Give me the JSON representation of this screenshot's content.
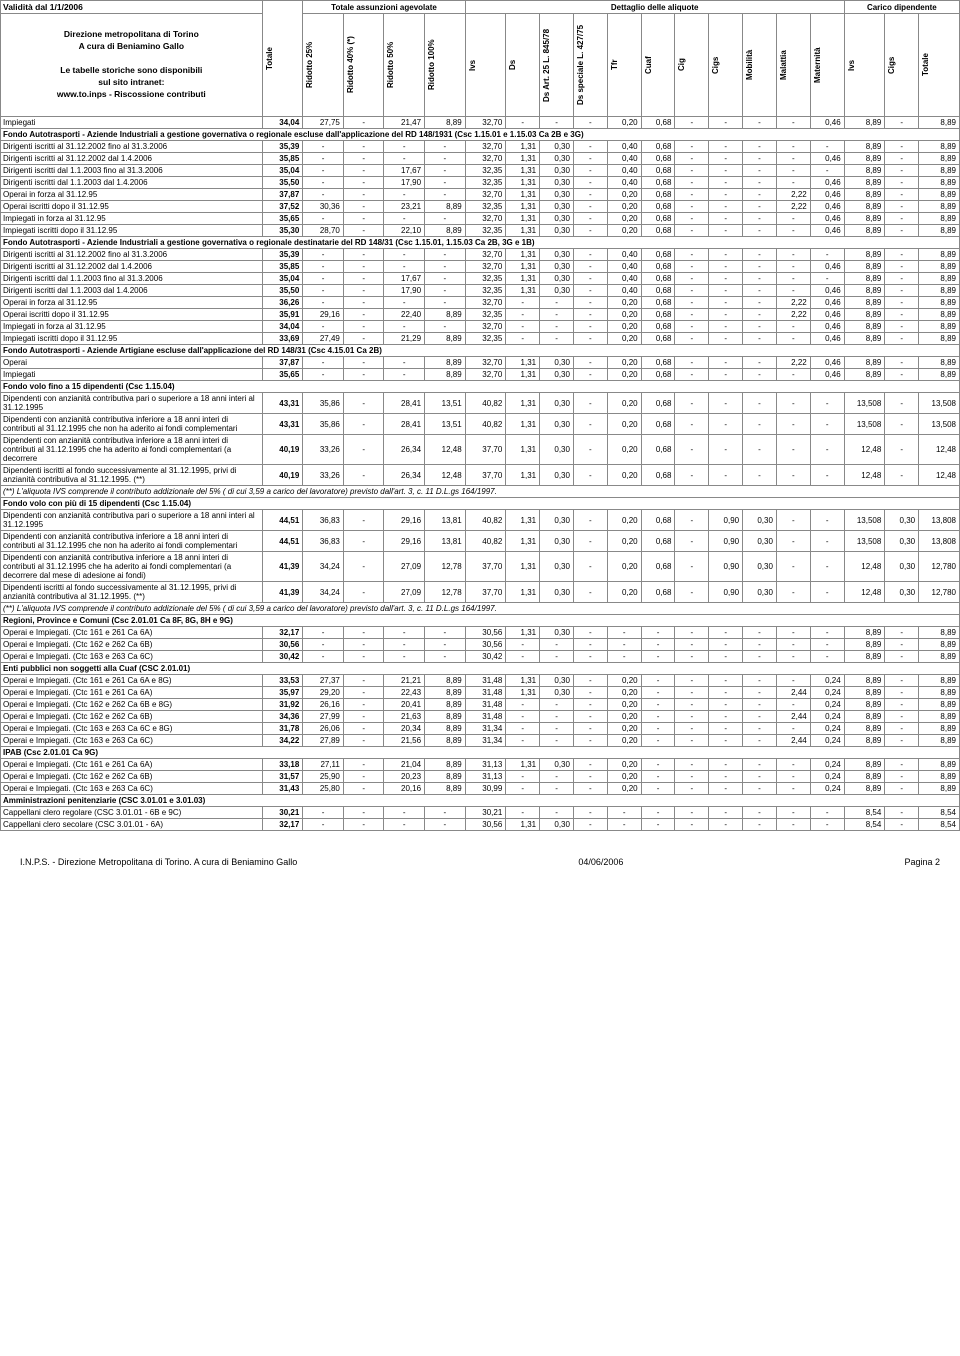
{
  "meta": {
    "validity": "Validità dal 1/1/2006",
    "dir1": "Direzione metropolitana di Torino",
    "dir2": "A cura di Beniamino Gallo",
    "dir3": "Le tabelle storiche sono disponibili",
    "dir4": "sul sito intranet:",
    "dir5": "www.to.inps - Riscossione contributi",
    "grp1": "Totale assunzioni agevolate",
    "grp2": "Dettaglio delle aliquote",
    "grp3": "Carico dipendente"
  },
  "cols": [
    "Totale",
    "Ridotto 25%",
    "Ridotto 40% (*)",
    "Ridotto 50%",
    "Ridotto 100%",
    "Ivs",
    "Ds",
    "Ds Art. 25 L. 845/78",
    "Ds speciale L. 427/75",
    "Tfr",
    "Cuaf",
    "Cig",
    "Cigs",
    "Mobilità",
    "Malattia",
    "Maternità",
    "Ivs",
    "Cigs",
    "Totale"
  ],
  "rows": [
    {
      "t": "d",
      "l": "Impiegati",
      "v": [
        "34,04",
        "27,75",
        "-",
        "21,47",
        "8,89",
        "32,70",
        "-",
        "-",
        "-",
        "0,20",
        "0,68",
        "-",
        "-",
        "-",
        "-",
        "0,46",
        "8,89",
        "-",
        "8,89"
      ]
    },
    {
      "t": "s",
      "l": "Fondo Autotrasporti - Aziende Industriali a gestione governativa o regionale escluse dall'applicazione del RD 148/1931 (Csc 1.15.01 e 1.15.03 Ca 2B e 3G)"
    },
    {
      "t": "d",
      "l": "Dirigenti iscritti al 31.12.2002 fino al 31.3.2006",
      "v": [
        "35,39",
        "-",
        "-",
        "-",
        "-",
        "32,70",
        "1,31",
        "0,30",
        "-",
        "0,40",
        "0,68",
        "-",
        "-",
        "-",
        "-",
        "-",
        "8,89",
        "-",
        "8,89"
      ]
    },
    {
      "t": "d",
      "l": "Dirigenti iscritti al 31.12.2002 dal 1.4.2006",
      "v": [
        "35,85",
        "-",
        "-",
        "-",
        "-",
        "32,70",
        "1,31",
        "0,30",
        "-",
        "0,40",
        "0,68",
        "-",
        "-",
        "-",
        "-",
        "0,46",
        "8,89",
        "-",
        "8,89"
      ]
    },
    {
      "t": "d",
      "l": "Dirigenti iscritti dal 1.1.2003 fino al 31.3.2006",
      "v": [
        "35,04",
        "-",
        "-",
        "17,67",
        "-",
        "32,35",
        "1,31",
        "0,30",
        "-",
        "0,40",
        "0,68",
        "-",
        "-",
        "-",
        "-",
        "-",
        "8,89",
        "-",
        "8,89"
      ]
    },
    {
      "t": "d",
      "l": "Dirigenti iscritti dal 1.1.2003 dal 1.4.2006",
      "v": [
        "35,50",
        "-",
        "-",
        "17,90",
        "-",
        "32,35",
        "1,31",
        "0,30",
        "-",
        "0,40",
        "0,68",
        "-",
        "-",
        "-",
        "-",
        "0,46",
        "8,89",
        "-",
        "8,89"
      ]
    },
    {
      "t": "d",
      "l": "Operai in forza al 31.12.95",
      "v": [
        "37,87",
        "-",
        "-",
        "-",
        "-",
        "32,70",
        "1,31",
        "0,30",
        "-",
        "0,20",
        "0,68",
        "-",
        "-",
        "-",
        "2,22",
        "0,46",
        "8,89",
        "-",
        "8,89"
      ]
    },
    {
      "t": "d",
      "l": "Operai iscritti dopo il 31.12.95",
      "v": [
        "37,52",
        "30,36",
        "-",
        "23,21",
        "8,89",
        "32,35",
        "1,31",
        "0,30",
        "-",
        "0,20",
        "0,68",
        "-",
        "-",
        "-",
        "2,22",
        "0,46",
        "8,89",
        "-",
        "8,89"
      ]
    },
    {
      "t": "d",
      "l": "Impiegati in forza al 31.12.95",
      "v": [
        "35,65",
        "-",
        "-",
        "-",
        "-",
        "32,70",
        "1,31",
        "0,30",
        "-",
        "0,20",
        "0,68",
        "-",
        "-",
        "-",
        "-",
        "0,46",
        "8,89",
        "-",
        "8,89"
      ]
    },
    {
      "t": "d",
      "l": "Impiegati iscritti dopo il 31.12.95",
      "v": [
        "35,30",
        "28,70",
        "-",
        "22,10",
        "8,89",
        "32,35",
        "1,31",
        "0,30",
        "-",
        "0,20",
        "0,68",
        "-",
        "-",
        "-",
        "-",
        "0,46",
        "8,89",
        "-",
        "8,89"
      ]
    },
    {
      "t": "s",
      "l": "Fondo Autotrasporti - Aziende Industriali a gestione governativa o regionale destinatarie del RD 148/31 (Csc 1.15.01, 1.15.03 Ca 2B, 3G e 1B)"
    },
    {
      "t": "d",
      "l": "Dirigenti iscritti al 31.12.2002 fino al 31.3.2006",
      "v": [
        "35,39",
        "-",
        "-",
        "-",
        "-",
        "32,70",
        "1,31",
        "0,30",
        "-",
        "0,40",
        "0,68",
        "-",
        "-",
        "-",
        "-",
        "-",
        "8,89",
        "-",
        "8,89"
      ]
    },
    {
      "t": "d",
      "l": "Dirigenti iscritti al 31.12.2002 dal 1.4.2006",
      "v": [
        "35,85",
        "-",
        "-",
        "-",
        "-",
        "32,70",
        "1,31",
        "0,30",
        "-",
        "0,40",
        "0,68",
        "-",
        "-",
        "-",
        "-",
        "0,46",
        "8,89",
        "-",
        "8,89"
      ]
    },
    {
      "t": "d",
      "l": "Dirigenti iscritti dal 1.1.2003 fino al 31.3.2006",
      "v": [
        "35,04",
        "-",
        "-",
        "17,67",
        "-",
        "32,35",
        "1,31",
        "0,30",
        "-",
        "0,40",
        "0,68",
        "-",
        "-",
        "-",
        "-",
        "-",
        "8,89",
        "-",
        "8,89"
      ]
    },
    {
      "t": "d",
      "l": "Dirigenti iscritti dal 1.1.2003 dal 1.4.2006",
      "v": [
        "35,50",
        "-",
        "-",
        "17,90",
        "-",
        "32,35",
        "1,31",
        "0,30",
        "-",
        "0,40",
        "0,68",
        "-",
        "-",
        "-",
        "-",
        "0,46",
        "8,89",
        "-",
        "8,89"
      ]
    },
    {
      "t": "d",
      "l": "Operai in forza al 31.12.95",
      "v": [
        "36,26",
        "-",
        "-",
        "-",
        "-",
        "32,70",
        "-",
        "-",
        "-",
        "0,20",
        "0,68",
        "-",
        "-",
        "-",
        "2,22",
        "0,46",
        "8,89",
        "-",
        "8,89"
      ]
    },
    {
      "t": "d",
      "l": "Operai iscritti dopo il 31.12.95",
      "v": [
        "35,91",
        "29,16",
        "-",
        "22,40",
        "8,89",
        "32,35",
        "-",
        "-",
        "-",
        "0,20",
        "0,68",
        "-",
        "-",
        "-",
        "2,22",
        "0,46",
        "8,89",
        "-",
        "8,89"
      ]
    },
    {
      "t": "d",
      "l": "Impiegati in forza al 31.12.95",
      "v": [
        "34,04",
        "-",
        "-",
        "-",
        "-",
        "32,70",
        "-",
        "-",
        "-",
        "0,20",
        "0,68",
        "-",
        "-",
        "-",
        "-",
        "0,46",
        "8,89",
        "-",
        "8,89"
      ]
    },
    {
      "t": "d",
      "l": "Impiegati iscritti dopo il 31.12.95",
      "v": [
        "33,69",
        "27,49",
        "-",
        "21,29",
        "8,89",
        "32,35",
        "-",
        "-",
        "-",
        "0,20",
        "0,68",
        "-",
        "-",
        "-",
        "-",
        "0,46",
        "8,89",
        "-",
        "8,89"
      ]
    },
    {
      "t": "s",
      "l": "Fondo Autotrasporti - Aziende Artigiane escluse dall'applicazione del RD 148/31 (Csc 4.15.01 Ca 2B)"
    },
    {
      "t": "d",
      "l": "Operai",
      "v": [
        "37,87",
        "-",
        "-",
        "-",
        "8,89",
        "32,70",
        "1,31",
        "0,30",
        "-",
        "0,20",
        "0,68",
        "-",
        "-",
        "-",
        "2,22",
        "0,46",
        "8,89",
        "-",
        "8,89"
      ]
    },
    {
      "t": "d",
      "l": "Impiegati",
      "v": [
        "35,65",
        "-",
        "-",
        "-",
        "8,89",
        "32,70",
        "1,31",
        "0,30",
        "-",
        "0,20",
        "0,68",
        "-",
        "-",
        "-",
        "-",
        "0,46",
        "8,89",
        "-",
        "8,89"
      ]
    },
    {
      "t": "s",
      "l": "Fondo volo fino a 15 dipendenti (Csc 1.15.04)"
    },
    {
      "t": "d",
      "l": "Dipendenti con anzianità contributiva pari o superiore a 18 anni interi al 31.12.1995",
      "v": [
        "43,31",
        "35,86",
        "-",
        "28,41",
        "13,51",
        "40,82",
        "1,31",
        "0,30",
        "-",
        "0,20",
        "0,68",
        "-",
        "-",
        "-",
        "-",
        "-",
        "13,508",
        "-",
        "13,508"
      ]
    },
    {
      "t": "d",
      "l": "Dipendenti con anzianità contributiva inferiore a 18 anni interi di contributi al 31.12.1995 che non ha aderito ai fondi complementari",
      "v": [
        "43,31",
        "35,86",
        "-",
        "28,41",
        "13,51",
        "40,82",
        "1,31",
        "0,30",
        "-",
        "0,20",
        "0,68",
        "-",
        "-",
        "-",
        "-",
        "-",
        "13,508",
        "-",
        "13,508"
      ]
    },
    {
      "t": "d",
      "l": "Dipendenti con anzianità contributiva inferiore a 18 anni interi di contributi al 31.12.1995 che ha aderito ai fondi complementari (a decorrere",
      "v": [
        "40,19",
        "33,26",
        "-",
        "26,34",
        "12,48",
        "37,70",
        "1,31",
        "0,30",
        "-",
        "0,20",
        "0,68",
        "-",
        "-",
        "-",
        "-",
        "-",
        "12,48",
        "-",
        "12,48"
      ]
    },
    {
      "t": "d",
      "l": "Dipendenti iscritti al fondo successivamente al 31.12.1995, privi di anzianità contributiva al 31.12.1995. (**)",
      "v": [
        "40,19",
        "33,26",
        "-",
        "26,34",
        "12,48",
        "37,70",
        "1,31",
        "0,30",
        "-",
        "0,20",
        "0,68",
        "-",
        "-",
        "-",
        "-",
        "-",
        "12,48",
        "-",
        "12,48"
      ]
    },
    {
      "t": "n",
      "l": "(**) L'aliquota IVS comprende il contributo addizionale del 5% ( di cui 3,59 a carico del lavoratore) previsto dall'art. 3, c. 11 D.L.gs 164/1997."
    },
    {
      "t": "s",
      "l": "Fondo volo con più di 15 dipendenti (Csc 1.15.04)"
    },
    {
      "t": "d",
      "l": "Dipendenti con anzianità contributiva pari o superiore a 18 anni interi al 31.12.1995",
      "v": [
        "44,51",
        "36,83",
        "-",
        "29,16",
        "13,81",
        "40,82",
        "1,31",
        "0,30",
        "-",
        "0,20",
        "0,68",
        "-",
        "0,90",
        "0,30",
        "-",
        "-",
        "13,508",
        "0,30",
        "13,808"
      ]
    },
    {
      "t": "d",
      "l": "Dipendenti con anzianità contributiva inferiore a 18 anni interi di contributi al 31.12.1995 che non ha aderito ai fondi complementari",
      "v": [
        "44,51",
        "36,83",
        "-",
        "29,16",
        "13,81",
        "40,82",
        "1,31",
        "0,30",
        "-",
        "0,20",
        "0,68",
        "-",
        "0,90",
        "0,30",
        "-",
        "-",
        "13,508",
        "0,30",
        "13,808"
      ]
    },
    {
      "t": "d",
      "l": "Dipendenti con anzianità contributiva inferiore a 18 anni interi di contributi al 31.12.1995 che ha aderito ai fondi complementari (a decorrere dal mese di adesione ai fondi)",
      "v": [
        "41,39",
        "34,24",
        "-",
        "27,09",
        "12,78",
        "37,70",
        "1,31",
        "0,30",
        "-",
        "0,20",
        "0,68",
        "-",
        "0,90",
        "0,30",
        "-",
        "-",
        "12,48",
        "0,30",
        "12,780"
      ]
    },
    {
      "t": "d",
      "l": "Dipendenti iscritti al fondo successivamente al 31.12.1995, privi di anzianità contributiva al 31.12.1995. (**)",
      "v": [
        "41,39",
        "34,24",
        "-",
        "27,09",
        "12,78",
        "37,70",
        "1,31",
        "0,30",
        "-",
        "0,20",
        "0,68",
        "-",
        "0,90",
        "0,30",
        "-",
        "-",
        "12,48",
        "0,30",
        "12,780"
      ]
    },
    {
      "t": "n",
      "l": "(**) L'aliquota IVS comprende il contributo addizionale del 5% ( di cui 3,59 a carico del lavoratore) previsto dall'art. 3, c. 11 D.L.gs 164/1997."
    },
    {
      "t": "s",
      "l": "Regioni, Province e Comuni (Csc 2.01.01 Ca 8F, 8G, 8H e 9G)"
    },
    {
      "t": "d",
      "l": "Operai e Impiegati.\n(Ctc 161 e 261 Ca 6A)",
      "v": [
        "32,17",
        "-",
        "-",
        "-",
        "-",
        "30,56",
        "1,31",
        "0,30",
        "-",
        "-",
        "-",
        "-",
        "-",
        "-",
        "-",
        "-",
        "8,89",
        "-",
        "8,89"
      ]
    },
    {
      "t": "d",
      "l": "Operai e Impiegati.\n(Ctc 162 e 262 Ca 6B)",
      "v": [
        "30,56",
        "-",
        "-",
        "-",
        "-",
        "30,56",
        "-",
        "-",
        "-",
        "-",
        "-",
        "-",
        "-",
        "-",
        "-",
        "-",
        "8,89",
        "-",
        "8,89"
      ]
    },
    {
      "t": "d",
      "l": "Operai e Impiegati.\n(Ctc 163 e 263 Ca 6C)",
      "v": [
        "30,42",
        "-",
        "-",
        "-",
        "-",
        "30,42",
        "-",
        "-",
        "-",
        "-",
        "-",
        "-",
        "-",
        "-",
        "-",
        "-",
        "8,89",
        "-",
        "8,89"
      ]
    },
    {
      "t": "s",
      "l": "Enti pubblici non soggetti alla Cuaf (CSC 2.01.01)"
    },
    {
      "t": "d",
      "l": "Operai e Impiegati.\n(Ctc 161 e 261 Ca 6A e 8G)",
      "v": [
        "33,53",
        "27,37",
        "-",
        "21,21",
        "8,89",
        "31,48",
        "1,31",
        "0,30",
        "-",
        "0,20",
        "-",
        "-",
        "-",
        "-",
        "-",
        "0,24",
        "8,89",
        "-",
        "8,89"
      ]
    },
    {
      "t": "d",
      "l": "Operai e Impiegati.\n(Ctc 161 e 261 Ca 6A)",
      "v": [
        "35,97",
        "29,20",
        "-",
        "22,43",
        "8,89",
        "31,48",
        "1,31",
        "0,30",
        "-",
        "0,20",
        "-",
        "-",
        "-",
        "-",
        "2,44",
        "0,24",
        "8,89",
        "-",
        "8,89"
      ]
    },
    {
      "t": "d",
      "l": "Operai e Impiegati.\n(Ctc 162 e 262 Ca 6B e 8G)",
      "v": [
        "31,92",
        "26,16",
        "-",
        "20,41",
        "8,89",
        "31,48",
        "-",
        "-",
        "-",
        "0,20",
        "-",
        "-",
        "-",
        "-",
        "-",
        "0,24",
        "8,89",
        "-",
        "8,89"
      ]
    },
    {
      "t": "d",
      "l": "Operai e Impiegati.\n(Ctc 162 e 262 Ca 6B)",
      "v": [
        "34,36",
        "27,99",
        "-",
        "21,63",
        "8,89",
        "31,48",
        "-",
        "-",
        "-",
        "0,20",
        "-",
        "-",
        "-",
        "-",
        "2,44",
        "0,24",
        "8,89",
        "-",
        "8,89"
      ]
    },
    {
      "t": "d",
      "l": "Operai e Impiegati.\n(Ctc 163 e 263 Ca 6C e 8G)",
      "v": [
        "31,78",
        "26,06",
        "-",
        "20,34",
        "8,89",
        "31,34",
        "-",
        "-",
        "-",
        "0,20",
        "-",
        "-",
        "-",
        "-",
        "-",
        "0,24",
        "8,89",
        "-",
        "8,89"
      ]
    },
    {
      "t": "d",
      "l": "Operai e Impiegati.\n(Ctc 163 e 263 Ca 6C)",
      "v": [
        "34,22",
        "27,89",
        "-",
        "21,56",
        "8,89",
        "31,34",
        "-",
        "-",
        "-",
        "0,20",
        "-",
        "-",
        "-",
        "-",
        "2,44",
        "0,24",
        "8,89",
        "-",
        "8,89"
      ]
    },
    {
      "t": "s",
      "l": "IPAB (Csc 2.01.01 Ca 9G)"
    },
    {
      "t": "d",
      "l": "Operai e Impiegati.\n(Ctc 161 e 261 Ca 6A)",
      "v": [
        "33,18",
        "27,11",
        "-",
        "21,04",
        "8,89",
        "31,13",
        "1,31",
        "0,30",
        "-",
        "0,20",
        "-",
        "-",
        "-",
        "-",
        "-",
        "0,24",
        "8,89",
        "-",
        "8,89"
      ]
    },
    {
      "t": "d",
      "l": "Operai e Impiegati.\n(Ctc 162 e 262 Ca 6B)",
      "v": [
        "31,57",
        "25,90",
        "-",
        "20,23",
        "8,89",
        "31,13",
        "-",
        "-",
        "-",
        "0,20",
        "-",
        "-",
        "-",
        "-",
        "-",
        "0,24",
        "8,89",
        "-",
        "8,89"
      ]
    },
    {
      "t": "d",
      "l": "Operai e Impiegati.\n(Ctc 163 e 263 Ca 6C)",
      "v": [
        "31,43",
        "25,80",
        "-",
        "20,16",
        "8,89",
        "30,99",
        "-",
        "-",
        "-",
        "0,20",
        "-",
        "-",
        "-",
        "-",
        "-",
        "0,24",
        "8,89",
        "-",
        "8,89"
      ]
    },
    {
      "t": "s",
      "l": "Amministrazioni penitenziarie (CSC 3.01.01 e 3.01.03)"
    },
    {
      "t": "d",
      "l": "Cappellani clero regolare\n(CSC 3.01.01 - 6B e 9C)",
      "v": [
        "30,21",
        "-",
        "-",
        "-",
        "-",
        "30,21",
        "-",
        "-",
        "-",
        "-",
        "-",
        "-",
        "-",
        "-",
        "-",
        "-",
        "8,54",
        "-",
        "8,54"
      ]
    },
    {
      "t": "d",
      "l": "Cappellani clero secolare\n(CSC 3.01.01 - 6A)",
      "v": [
        "32,17",
        "-",
        "-",
        "-",
        "-",
        "30,56",
        "1,31",
        "0,30",
        "-",
        "-",
        "-",
        "-",
        "-",
        "-",
        "-",
        "-",
        "8,54",
        "-",
        "8,54"
      ]
    }
  ],
  "footer": {
    "left": "I.N.P.S. - Direzione Metropolitana di Torino. A cura di Beniamino Gallo",
    "center": "04/06/2006",
    "right": "Pagina 2"
  }
}
